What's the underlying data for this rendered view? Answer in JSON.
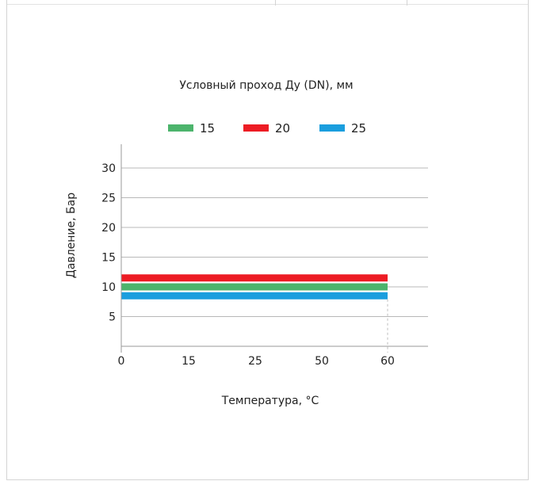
{
  "chart_data": {
    "type": "bar",
    "orientation": "horizontal",
    "title": "Условный проход Ду (DN), мм",
    "xlabel": "Температура, °C",
    "ylabel": "Давление, Бар",
    "x_tick_labels": [
      "0",
      "15",
      "25",
      "50",
      "60"
    ],
    "y_ticks": [
      5,
      10,
      15,
      20,
      25,
      30
    ],
    "ylim": [
      0,
      35
    ],
    "legend_position": "top",
    "grid": true,
    "series": [
      {
        "name": "15",
        "color": "#4cb46c",
        "value": 10,
        "x_start": "0",
        "x_end": "60"
      },
      {
        "name": "20",
        "color": "#ed1c24",
        "value": 11.5,
        "x_start": "0",
        "x_end": "60"
      },
      {
        "name": "25",
        "color": "#1a9ede",
        "value": 8.5,
        "x_start": "0",
        "x_end": "60"
      }
    ]
  }
}
